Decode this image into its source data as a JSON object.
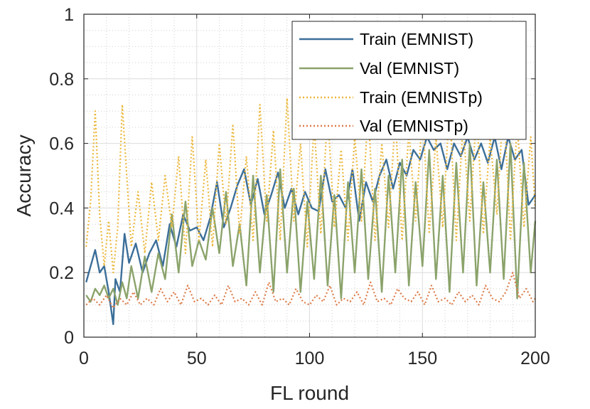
{
  "chart_data": {
    "type": "line",
    "title": "",
    "xlabel": "FL round",
    "ylabel": "Accuracy",
    "xlim": [
      0,
      200
    ],
    "ylim": [
      0,
      1
    ],
    "xticks": [
      0,
      50,
      100,
      150,
      200
    ],
    "yticks": [
      0,
      0.2,
      0.4,
      0.6,
      0.8,
      1
    ],
    "ytick_labels": [
      "0",
      "0.2",
      "0.4",
      "0.6",
      "0.8",
      "1"
    ],
    "grid": true,
    "legend_position": "top-right",
    "series": [
      {
        "name": "Train (EMNIST)",
        "color": "#3b6e99",
        "style": "solid",
        "x": [
          1,
          3,
          5,
          7,
          9,
          11,
          13,
          14,
          16,
          18,
          20,
          23,
          26,
          29,
          32,
          35,
          38,
          41,
          44,
          47,
          50,
          53,
          56,
          59,
          62,
          65,
          68,
          71,
          74,
          77,
          80,
          83,
          86,
          89,
          92,
          95,
          98,
          101,
          104,
          107,
          110,
          113,
          116,
          119,
          122,
          125,
          128,
          131,
          134,
          137,
          140,
          143,
          146,
          149,
          152,
          155,
          158,
          161,
          164,
          167,
          170,
          173,
          176,
          179,
          182,
          185,
          188,
          191,
          194,
          197,
          200
        ],
        "values": [
          0.17,
          0.22,
          0.27,
          0.2,
          0.22,
          0.14,
          0.04,
          0.18,
          0.14,
          0.32,
          0.23,
          0.29,
          0.2,
          0.26,
          0.3,
          0.22,
          0.35,
          0.28,
          0.38,
          0.33,
          0.34,
          0.3,
          0.37,
          0.48,
          0.34,
          0.4,
          0.47,
          0.52,
          0.41,
          0.49,
          0.38,
          0.44,
          0.51,
          0.4,
          0.46,
          0.38,
          0.45,
          0.4,
          0.39,
          0.52,
          0.42,
          0.44,
          0.4,
          0.52,
          0.36,
          0.48,
          0.42,
          0.5,
          0.55,
          0.46,
          0.54,
          0.5,
          0.58,
          0.55,
          0.62,
          0.58,
          0.6,
          0.52,
          0.6,
          0.56,
          0.62,
          0.55,
          0.6,
          0.54,
          0.62,
          0.52,
          0.62,
          0.55,
          0.58,
          0.41,
          0.44
        ]
      },
      {
        "name": "Val (EMNIST)",
        "color": "#8ba36b",
        "style": "solid",
        "x": [
          1,
          3,
          5,
          7,
          9,
          11,
          13,
          15,
          17,
          19,
          21,
          24,
          27,
          30,
          33,
          36,
          39,
          42,
          45,
          48,
          51,
          54,
          57,
          60,
          63,
          66,
          69,
          72,
          75,
          78,
          81,
          84,
          87,
          90,
          93,
          96,
          99,
          102,
          105,
          108,
          111,
          114,
          117,
          120,
          123,
          126,
          129,
          132,
          135,
          138,
          141,
          144,
          147,
          150,
          153,
          156,
          159,
          162,
          165,
          168,
          171,
          174,
          177,
          180,
          183,
          186,
          189,
          192,
          195,
          198,
          200
        ],
        "values": [
          0.13,
          0.11,
          0.15,
          0.13,
          0.16,
          0.12,
          0.15,
          0.1,
          0.17,
          0.12,
          0.22,
          0.12,
          0.25,
          0.14,
          0.26,
          0.18,
          0.38,
          0.2,
          0.42,
          0.22,
          0.3,
          0.24,
          0.4,
          0.26,
          0.45,
          0.22,
          0.35,
          0.16,
          0.5,
          0.2,
          0.44,
          0.14,
          0.52,
          0.2,
          0.46,
          0.14,
          0.42,
          0.18,
          0.5,
          0.16,
          0.44,
          0.12,
          0.48,
          0.2,
          0.52,
          0.18,
          0.46,
          0.14,
          0.5,
          0.2,
          0.55,
          0.16,
          0.48,
          0.22,
          0.58,
          0.18,
          0.5,
          0.14,
          0.54,
          0.2,
          0.6,
          0.16,
          0.48,
          0.2,
          0.55,
          0.18,
          0.6,
          0.12,
          0.54,
          0.2,
          0.36
        ]
      },
      {
        "name": "Train (EMNISTp)",
        "color": "#ecb83d",
        "style": "dotted",
        "x": [
          1,
          3,
          5,
          7,
          9,
          11,
          13,
          15,
          17,
          19,
          21,
          24,
          27,
          30,
          33,
          36,
          39,
          42,
          45,
          48,
          51,
          54,
          57,
          60,
          63,
          66,
          69,
          72,
          75,
          78,
          81,
          84,
          87,
          90,
          93,
          96,
          99,
          102,
          105,
          108,
          111,
          114,
          117,
          120,
          123,
          126,
          129,
          132,
          135,
          138,
          141,
          144,
          147,
          150,
          153,
          156,
          159,
          162,
          165,
          168,
          171,
          174,
          177,
          180,
          183,
          186,
          189,
          192,
          195,
          198,
          200
        ],
        "values": [
          0.28,
          0.42,
          0.7,
          0.38,
          0.22,
          0.36,
          0.2,
          0.34,
          0.72,
          0.5,
          0.28,
          0.45,
          0.26,
          0.48,
          0.3,
          0.5,
          0.34,
          0.56,
          0.26,
          0.62,
          0.3,
          0.55,
          0.28,
          0.6,
          0.35,
          0.66,
          0.32,
          0.56,
          0.3,
          0.72,
          0.36,
          0.64,
          0.3,
          0.74,
          0.36,
          0.6,
          0.28,
          0.66,
          0.32,
          0.7,
          0.34,
          0.58,
          0.3,
          0.62,
          0.36,
          0.7,
          0.3,
          0.6,
          0.34,
          0.68,
          0.3,
          0.64,
          0.36,
          0.7,
          0.32,
          0.62,
          0.34,
          0.72,
          0.3,
          0.66,
          0.36,
          0.7,
          0.32,
          0.62,
          0.38,
          0.74,
          0.3,
          0.66,
          0.34,
          0.62,
          0.4
        ]
      },
      {
        "name": "Val (EMNISTp)",
        "color": "#dd7c4a",
        "style": "dotted",
        "x": [
          1,
          4,
          7,
          10,
          13,
          16,
          19,
          22,
          25,
          28,
          31,
          34,
          37,
          40,
          43,
          46,
          49,
          52,
          55,
          58,
          61,
          64,
          67,
          70,
          73,
          76,
          79,
          82,
          85,
          88,
          91,
          94,
          97,
          100,
          103,
          106,
          109,
          112,
          115,
          118,
          121,
          124,
          127,
          130,
          133,
          136,
          139,
          142,
          145,
          148,
          151,
          154,
          157,
          160,
          163,
          166,
          169,
          172,
          175,
          178,
          181,
          184,
          187,
          190,
          193,
          196,
          199,
          200
        ],
        "values": [
          0.1,
          0.12,
          0.1,
          0.13,
          0.09,
          0.12,
          0.1,
          0.14,
          0.1,
          0.12,
          0.1,
          0.15,
          0.11,
          0.14,
          0.1,
          0.16,
          0.11,
          0.12,
          0.1,
          0.13,
          0.1,
          0.16,
          0.11,
          0.12,
          0.1,
          0.14,
          0.1,
          0.17,
          0.11,
          0.12,
          0.1,
          0.15,
          0.11,
          0.1,
          0.13,
          0.11,
          0.16,
          0.1,
          0.12,
          0.11,
          0.14,
          0.1,
          0.17,
          0.11,
          0.12,
          0.1,
          0.15,
          0.12,
          0.11,
          0.14,
          0.1,
          0.16,
          0.11,
          0.12,
          0.1,
          0.14,
          0.11,
          0.13,
          0.1,
          0.16,
          0.12,
          0.11,
          0.14,
          0.2,
          0.12,
          0.15,
          0.11,
          0.12
        ]
      }
    ]
  }
}
